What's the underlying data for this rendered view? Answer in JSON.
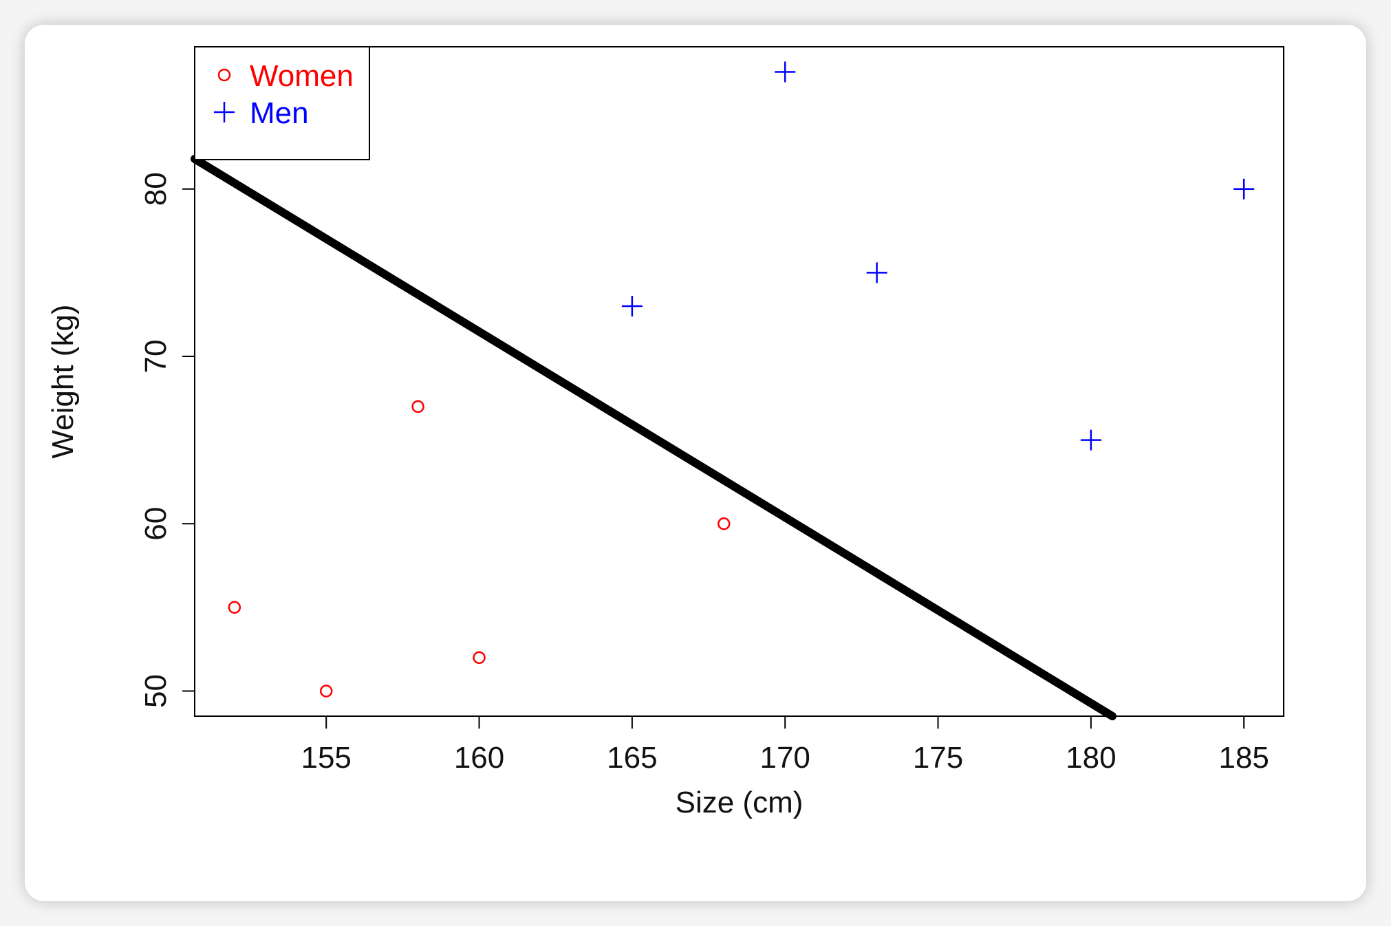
{
  "chart_data": {
    "type": "scatter",
    "title": "",
    "xlabel": "Size (cm)",
    "ylabel": "Weight (kg)",
    "xlim": [
      150.7,
      186.3
    ],
    "ylim": [
      48.5,
      88.5
    ],
    "xticks": [
      155,
      160,
      165,
      170,
      175,
      180,
      185
    ],
    "yticks": [
      50,
      60,
      70,
      80
    ],
    "grid": false,
    "legend": "top-left",
    "series": [
      {
        "name": "Women",
        "marker": "circle",
        "color": "#ff0000",
        "points": [
          [
            152,
            55
          ],
          [
            155,
            50
          ],
          [
            158,
            67
          ],
          [
            160,
            52
          ],
          [
            168,
            60
          ]
        ]
      },
      {
        "name": "Men",
        "marker": "plus",
        "color": "#0000ff",
        "points": [
          [
            165,
            73
          ],
          [
            170,
            87
          ],
          [
            173,
            75
          ],
          [
            180,
            65
          ],
          [
            185,
            80
          ]
        ]
      }
    ],
    "line": {
      "color": "#000000",
      "points": [
        [
          150.7,
          81.8
        ],
        [
          180.7,
          48.5
        ]
      ]
    }
  }
}
